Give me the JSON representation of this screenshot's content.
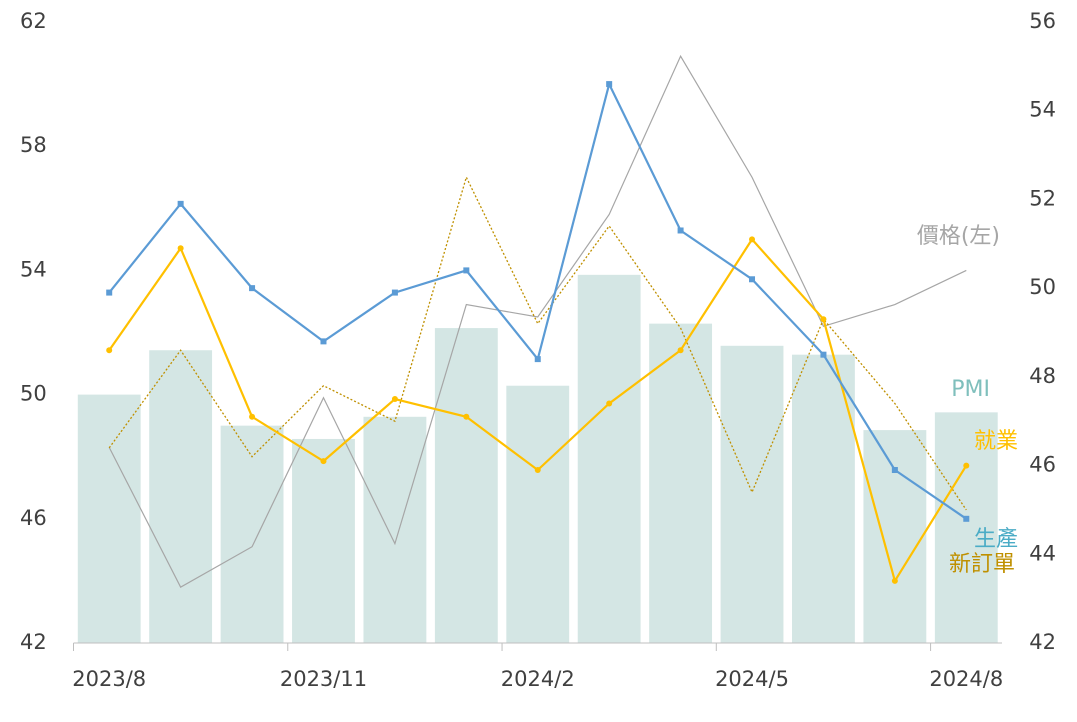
{
  "chart_data": {
    "type": "bar-line",
    "categories": [
      "2023/8",
      null,
      null,
      "2023/11",
      null,
      null,
      "2024/2",
      null,
      null,
      "2024/5",
      null,
      null,
      "2024/8"
    ],
    "ylim": [
      42,
      62
    ],
    "yticks": [
      42,
      46,
      50,
      54,
      58,
      62
    ],
    "y2lim": [
      42,
      56
    ],
    "y2ticks": [
      42,
      44,
      46,
      48,
      50,
      52,
      54,
      56
    ],
    "series": [
      {
        "name": "PMI",
        "type": "bar",
        "axis": "y2",
        "color": "#d4e6e4",
        "label_color": "#7fbfbc",
        "values": [
          47.6,
          48.6,
          46.9,
          46.6,
          47.1,
          49.1,
          47.8,
          50.3,
          49.2,
          48.7,
          48.5,
          46.8,
          47.2
        ]
      },
      {
        "name": "價格(左)",
        "type": "line",
        "axis": "y",
        "color": "#a6a6a6",
        "style": "thin",
        "values": [
          48.3,
          43.8,
          45.1,
          49.9,
          45.2,
          52.9,
          52.5,
          55.8,
          60.9,
          57.0,
          52.2,
          52.9,
          54.0
        ]
      },
      {
        "name": "新訂單",
        "type": "line",
        "axis": "y2",
        "color": "#bf9000",
        "style": "dotted",
        "values": [
          46.4,
          48.6,
          46.2,
          47.8,
          47.0,
          52.5,
          49.2,
          51.4,
          49.1,
          45.4,
          49.3,
          47.4,
          45.0
        ]
      },
      {
        "name": "就業",
        "type": "line",
        "axis": "y2",
        "color": "#ffc000",
        "style": "marker",
        "values": [
          48.6,
          50.9,
          47.1,
          46.1,
          47.5,
          47.1,
          45.9,
          47.4,
          48.6,
          51.1,
          49.3,
          43.4,
          46.0
        ]
      },
      {
        "name": "生產",
        "type": "line",
        "axis": "y2",
        "color": "#5b9bd5",
        "style": "square",
        "values": [
          49.9,
          51.9,
          50.0,
          48.8,
          49.9,
          50.4,
          48.4,
          54.6,
          51.3,
          50.2,
          48.5,
          45.9,
          44.8
        ]
      }
    ]
  }
}
